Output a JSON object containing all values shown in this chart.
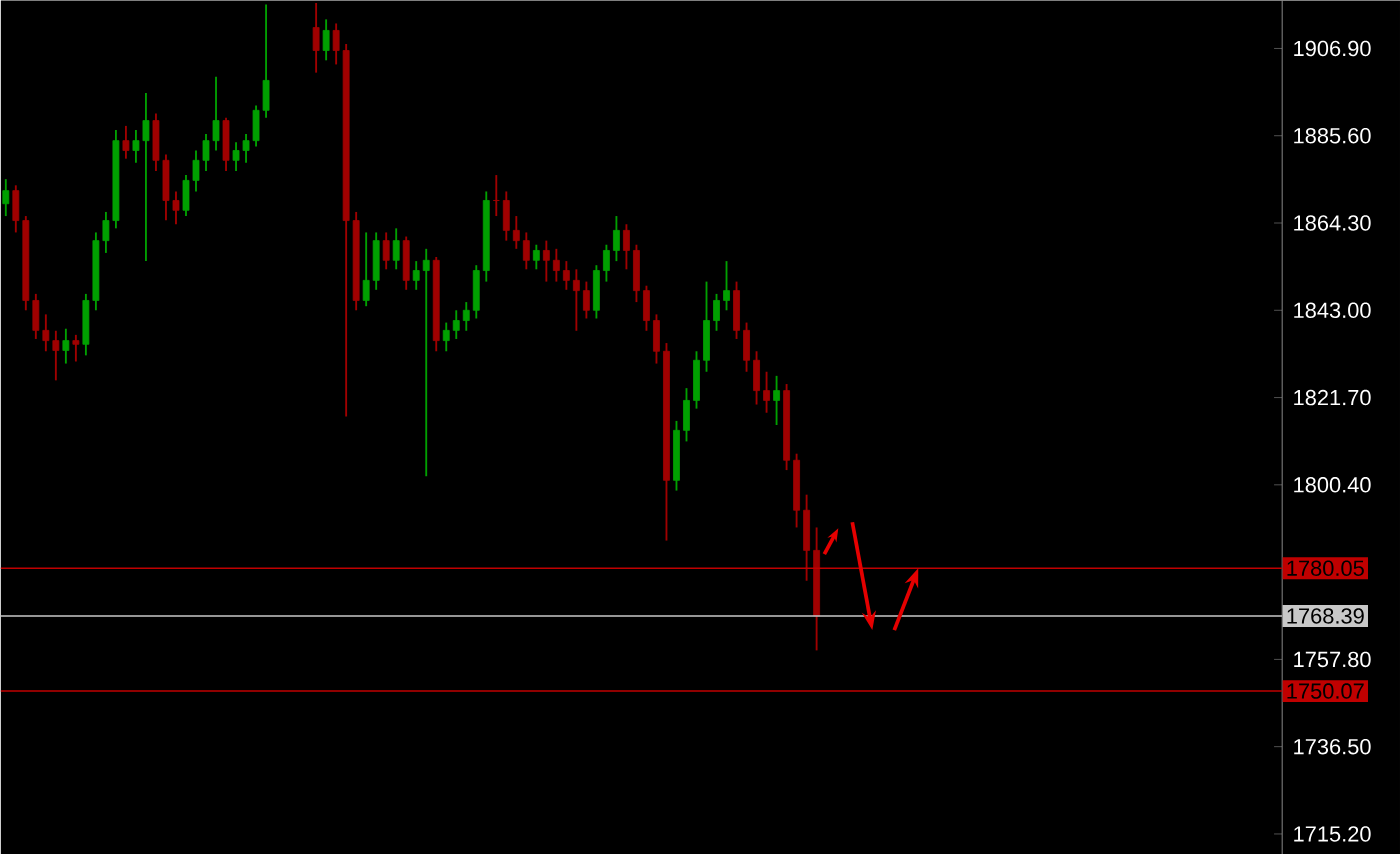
{
  "chart_data": {
    "type": "candlestick",
    "tick_labels": "y",
    "categories": [
      null,
      null,
      null,
      null,
      null,
      null,
      null,
      null,
      null,
      null,
      null,
      null,
      null,
      null,
      null,
      null,
      null,
      null,
      null,
      null,
      null,
      null,
      null,
      null,
      null,
      null,
      null,
      null,
      null,
      null,
      null,
      null,
      null,
      null,
      null,
      null,
      null,
      null,
      null,
      null,
      null,
      null,
      null,
      null,
      null,
      null,
      null,
      null,
      null,
      null,
      null,
      null,
      null,
      null,
      null,
      null,
      null,
      null,
      null,
      null,
      null,
      null,
      null,
      null,
      null,
      null,
      null,
      null,
      null,
      null,
      null,
      null,
      null,
      null,
      null,
      null,
      null,
      null,
      null,
      null,
      null,
      null,
      null,
      null,
      null,
      null,
      null,
      null,
      null,
      null,
      null,
      null,
      null,
      null,
      null,
      null,
      null,
      null,
      null,
      null,
      null,
      null,
      null,
      null,
      null,
      null,
      null,
      null,
      null,
      null,
      null,
      null,
      null,
      null,
      null,
      null,
      null,
      null,
      null,
      null,
      null,
      null,
      null,
      null,
      null,
      null,
      null,
      null
    ],
    "ohlc": [
      [
        1869.0,
        1875.0,
        1866.0,
        1872.2
      ],
      [
        1872.2,
        1873.5,
        1862.0,
        1864.9
      ],
      [
        1864.9,
        1866.0,
        1843.0,
        1845.4
      ],
      [
        1845.4,
        1847.0,
        1836.0,
        1838.1
      ],
      [
        1838.1,
        1842.0,
        1833.0,
        1835.6
      ],
      [
        1835.6,
        1838.0,
        1825.9,
        1833.2
      ],
      [
        1833.2,
        1838.5,
        1830.0,
        1835.6
      ],
      [
        1835.6,
        1837.0,
        1830.5,
        1834.7
      ],
      [
        1834.7,
        1847.0,
        1832.0,
        1845.4
      ],
      [
        1845.4,
        1862.0,
        1843.0,
        1860.0
      ],
      [
        1860.0,
        1867.0,
        1857.0,
        1864.9
      ],
      [
        1864.9,
        1887.0,
        1863.0,
        1884.4
      ],
      [
        1884.4,
        1888.0,
        1880.0,
        1882.0
      ],
      [
        1882.0,
        1887.0,
        1879.0,
        1884.4
      ],
      [
        1884.4,
        1896.0,
        1855.0,
        1889.3
      ],
      [
        1889.3,
        1891.0,
        1877.0,
        1879.6
      ],
      [
        1879.6,
        1881.0,
        1865.0,
        1869.8
      ],
      [
        1869.8,
        1872.0,
        1864.0,
        1867.4
      ],
      [
        1867.4,
        1876.0,
        1866.0,
        1874.7
      ],
      [
        1874.7,
        1882.0,
        1872.0,
        1879.6
      ],
      [
        1879.6,
        1886.0,
        1877.0,
        1884.4
      ],
      [
        1884.4,
        1900.0,
        1882.0,
        1889.3
      ],
      [
        1889.3,
        1890.0,
        1877.0,
        1879.6
      ],
      [
        1879.6,
        1884.0,
        1877.0,
        1882.0
      ],
      [
        1882.0,
        1886.0,
        1879.0,
        1884.4
      ],
      [
        1884.4,
        1893.0,
        1883.0,
        1891.8
      ],
      [
        1891.8,
        1917.6,
        1890.0,
        1899.1
      ],
      null,
      null,
      null,
      null,
      [
        1912.0,
        1918.0,
        1901.0,
        1906.4
      ],
      [
        1906.4,
        1914.0,
        1904.0,
        1911.3
      ],
      [
        1911.3,
        1913.0,
        1903.0,
        1906.4
      ],
      [
        1906.4,
        1908.0,
        1817.1,
        1864.9
      ],
      [
        1864.9,
        1867.0,
        1843.0,
        1845.4
      ],
      [
        1845.4,
        1862.0,
        1844.0,
        1850.3
      ],
      [
        1850.3,
        1862.0,
        1848.0,
        1860.0
      ],
      [
        1860.0,
        1862.0,
        1853.0,
        1855.2
      ],
      [
        1855.2,
        1863.0,
        1853.0,
        1860.0
      ],
      [
        1860.0,
        1861.0,
        1848.0,
        1850.3
      ],
      [
        1850.3,
        1855.0,
        1848.0,
        1852.7
      ],
      [
        1852.7,
        1858.0,
        1802.5,
        1855.2
      ],
      [
        1855.2,
        1856.0,
        1833.0,
        1835.6
      ],
      [
        1835.6,
        1840.0,
        1833.0,
        1838.1
      ],
      [
        1838.1,
        1843.0,
        1836.0,
        1840.5
      ],
      [
        1840.5,
        1845.0,
        1838.0,
        1843.0
      ],
      [
        1843.0,
        1854.0,
        1841.0,
        1852.7
      ],
      [
        1852.7,
        1872.0,
        1850.0,
        1869.8
      ],
      [
        1869.8,
        1876.0,
        1866.0,
        1869.8
      ],
      [
        1869.8,
        1872.0,
        1860.0,
        1862.5
      ],
      [
        1862.5,
        1866.0,
        1858.0,
        1860.0
      ],
      [
        1860.0,
        1862.0,
        1853.0,
        1855.2
      ],
      [
        1855.2,
        1859.0,
        1853.0,
        1857.6
      ],
      [
        1857.6,
        1860.0,
        1850.0,
        1855.2
      ],
      [
        1855.2,
        1858.0,
        1850.0,
        1852.7
      ],
      [
        1852.7,
        1855.0,
        1848.0,
        1850.3
      ],
      [
        1850.3,
        1853.0,
        1838.0,
        1847.8
      ],
      [
        1847.8,
        1850.0,
        1841.0,
        1843.0
      ],
      [
        1843.0,
        1854.0,
        1841.0,
        1852.7
      ],
      [
        1852.7,
        1859.0,
        1850.0,
        1857.6
      ],
      [
        1857.6,
        1866.0,
        1855.0,
        1862.5
      ],
      [
        1862.5,
        1864.0,
        1853.0,
        1857.6
      ],
      [
        1857.6,
        1859.0,
        1845.0,
        1847.8
      ],
      [
        1847.8,
        1849.0,
        1838.0,
        1840.5
      ],
      [
        1840.5,
        1842.0,
        1830.0,
        1833.0
      ],
      [
        1833.0,
        1835.0,
        1786.8,
        1801.5
      ],
      [
        1801.5,
        1816.0,
        1799.0,
        1813.7
      ],
      [
        1813.7,
        1824.0,
        1811.0,
        1821.0
      ],
      [
        1821.0,
        1833.0,
        1819.0,
        1830.8
      ],
      [
        1830.8,
        1850.0,
        1828.0,
        1840.5
      ],
      [
        1840.5,
        1847.0,
        1838.0,
        1845.4
      ],
      [
        1845.4,
        1855.0,
        1843.0,
        1847.8
      ],
      [
        1847.8,
        1850.0,
        1836.0,
        1838.1
      ],
      [
        1838.1,
        1840.0,
        1828.0,
        1830.8
      ],
      [
        1830.8,
        1833.0,
        1820.0,
        1823.4
      ],
      [
        1823.4,
        1828.0,
        1818.0,
        1821.0
      ],
      [
        1821.0,
        1827.0,
        1815.0,
        1823.4
      ],
      [
        1823.4,
        1825.0,
        1804.0,
        1806.4
      ],
      [
        1806.4,
        1808.0,
        1790.0,
        1794.2
      ],
      [
        1794.2,
        1798.0,
        1777.0,
        1784.4
      ],
      [
        1784.4,
        1790.0,
        1760.0,
        1768.39
      ],
      null,
      null,
      null,
      null,
      null,
      null,
      null,
      null,
      null,
      null,
      null,
      null,
      null,
      null,
      null,
      null,
      null,
      null,
      null,
      null,
      null,
      null,
      null,
      null,
      null,
      null,
      null,
      null,
      null,
      null,
      null,
      null,
      null,
      null,
      null,
      null,
      null,
      null,
      null,
      null,
      null,
      null,
      null,
      null,
      null,
      null
    ],
    "colors": [
      "#00a000",
      "#a00000",
      "#a00000",
      "#a00000",
      "#a00000",
      "#a00000",
      "#00a000",
      "#a00000",
      "#00a000",
      "#00a000",
      "#00a000",
      "#00a000",
      "#a00000",
      "#00a000",
      "#00a000",
      "#a00000",
      "#a00000",
      "#a00000",
      "#00a000",
      "#00a000",
      "#00a000",
      "#00a000",
      "#a00000",
      "#00a000",
      "#00a000",
      "#00a000",
      "#00a000",
      null,
      null,
      null,
      null,
      "#a00000",
      "#00a000",
      "#a00000",
      "#a00000",
      "#a00000",
      "#00a000",
      "#00a000",
      "#a00000",
      "#00a000",
      "#a00000",
      "#00a000",
      "#00a000",
      "#a00000",
      "#00a000",
      "#00a000",
      "#00a000",
      "#00a000",
      "#00a000",
      "#a00000",
      "#a00000",
      "#a00000",
      "#a00000",
      "#00a000",
      "#a00000",
      "#a00000",
      "#a00000",
      "#a00000",
      "#a00000",
      "#00a000",
      "#00a000",
      "#00a000",
      "#a00000",
      "#a00000",
      "#a00000",
      "#a00000",
      "#a00000",
      "#00a000",
      "#00a000",
      "#00a000",
      "#00a000",
      "#00a000",
      "#00a000",
      "#a00000",
      "#a00000",
      "#a00000",
      "#a00000",
      "#00a000",
      "#a00000",
      "#a00000",
      "#a00000",
      "#a00000",
      null,
      null,
      null,
      null,
      null,
      null,
      null,
      null,
      null,
      null,
      null,
      null,
      null,
      null,
      null,
      null,
      null,
      null,
      null,
      null,
      null,
      null,
      null,
      null,
      null,
      null,
      null,
      null,
      null,
      null,
      null,
      null,
      null,
      null,
      null,
      null,
      null,
      null,
      null,
      null,
      null,
      null,
      null,
      null,
      null,
      null
    ],
    "ylim": [
      1710.3,
      1918.6
    ],
    "yticks": [
      {
        "value": 1906.9,
        "label": "1906.90"
      },
      {
        "value": 1885.6,
        "label": "1885.60"
      },
      {
        "value": 1864.3,
        "label": "1864.30"
      },
      {
        "value": 1843.0,
        "label": "1843.00"
      },
      {
        "value": 1821.7,
        "label": "1821.70"
      },
      {
        "value": 1800.4,
        "label": "1800.40"
      },
      {
        "value": 1757.8,
        "label": "1757.80"
      },
      {
        "value": 1736.5,
        "label": "1736.50"
      },
      {
        "value": 1715.2,
        "label": "1715.20"
      }
    ],
    "ref_lines": [
      {
        "axis": "y",
        "value": 1780.05,
        "label": "1780.05",
        "color": "#c00000"
      },
      {
        "axis": "y",
        "value": 1768.39,
        "label": "1768.39",
        "color": "#c8c8c8"
      },
      {
        "axis": "y",
        "value": 1750.07,
        "label": "1750.07",
        "color": "#c00000"
      }
    ]
  }
}
